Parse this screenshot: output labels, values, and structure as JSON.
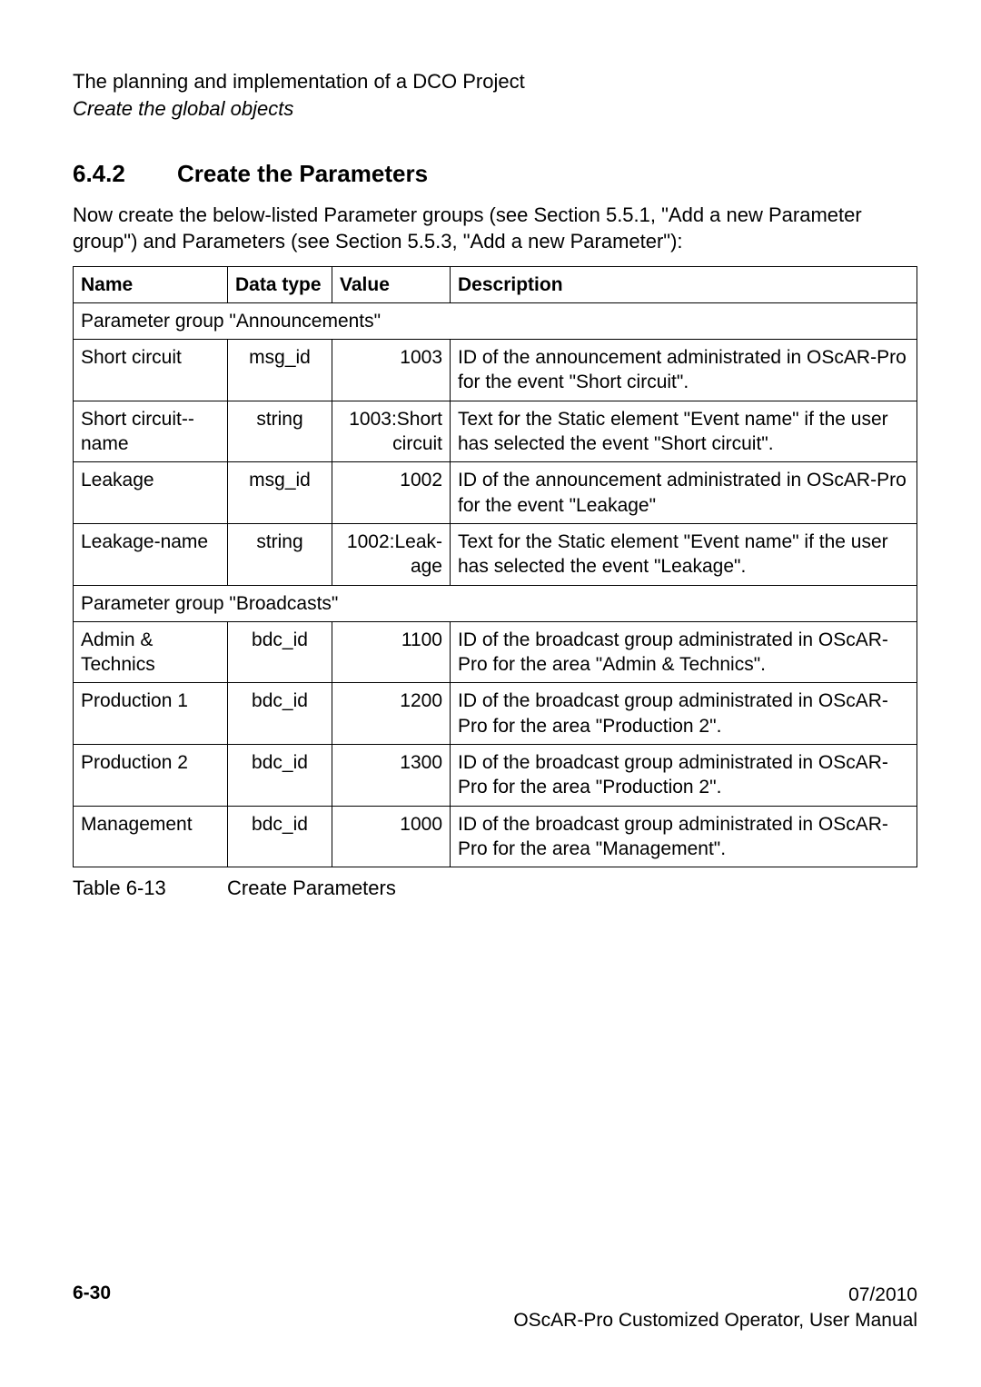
{
  "header": {
    "line1": "The planning and implementation of a DCO Project",
    "line2": "Create the global objects"
  },
  "section": {
    "number": "6.4.2",
    "title": "Create the Parameters"
  },
  "intro": "Now create the below-listed Parameter groups (see Section 5.5.1, \"Add a new Parameter group\") and Parameters (see Section 5.5.3, \"Add a new Parameter\"):",
  "table": {
    "columns": [
      "Name",
      "Data type",
      "Value",
      "Description"
    ],
    "group1": "Parameter group \"Announcements\"",
    "rows1": [
      {
        "name": "Short circuit",
        "type": "msg_id",
        "value": "1003",
        "desc": "ID of the announcement administrated in OScAR-Pro for the event \"Short circuit\"."
      },
      {
        "name": "Short circuit--name",
        "type": "string",
        "value": "1003:Short circuit",
        "desc": "Text for the Static element \"Event name\" if the user has selected the event \"Short circuit\"."
      },
      {
        "name": "Leakage",
        "type": "msg_id",
        "value": "1002",
        "desc": "ID of the announcement administrated in OScAR-Pro for the event \"Leakage\""
      },
      {
        "name": "Leakage-name",
        "type": "string",
        "value": "1002:Leak-age",
        "desc": "Text for the Static element \"Event name\" if the user has selected the event \"Leakage\"."
      }
    ],
    "group2": "Parameter group \"Broadcasts\"",
    "rows2": [
      {
        "name": "Admin & Technics",
        "type": "bdc_id",
        "value": "1100",
        "desc": "ID of the broadcast group administrated in OScAR-Pro for the area \"Admin & Technics\"."
      },
      {
        "name": "Production 1",
        "type": "bdc_id",
        "value": "1200",
        "desc": "ID of the broadcast group administrated in OScAR-Pro for the area \"Production 2\"."
      },
      {
        "name": "Production 2",
        "type": "bdc_id",
        "value": "1300",
        "desc": "ID of the broadcast group administrated in OScAR-Pro for the area \"Production 2\"."
      },
      {
        "name": "Management",
        "type": "bdc_id",
        "value": "1000",
        "desc": "ID of the broadcast group administrated in OScAR-Pro for the area \"Management\"."
      }
    ]
  },
  "caption": {
    "label": "Table 6-13",
    "text": "Create Parameters"
  },
  "footer": {
    "page": "6-30",
    "date": "07/2010",
    "doc": "OScAR-Pro Customized Operator, User Manual"
  }
}
